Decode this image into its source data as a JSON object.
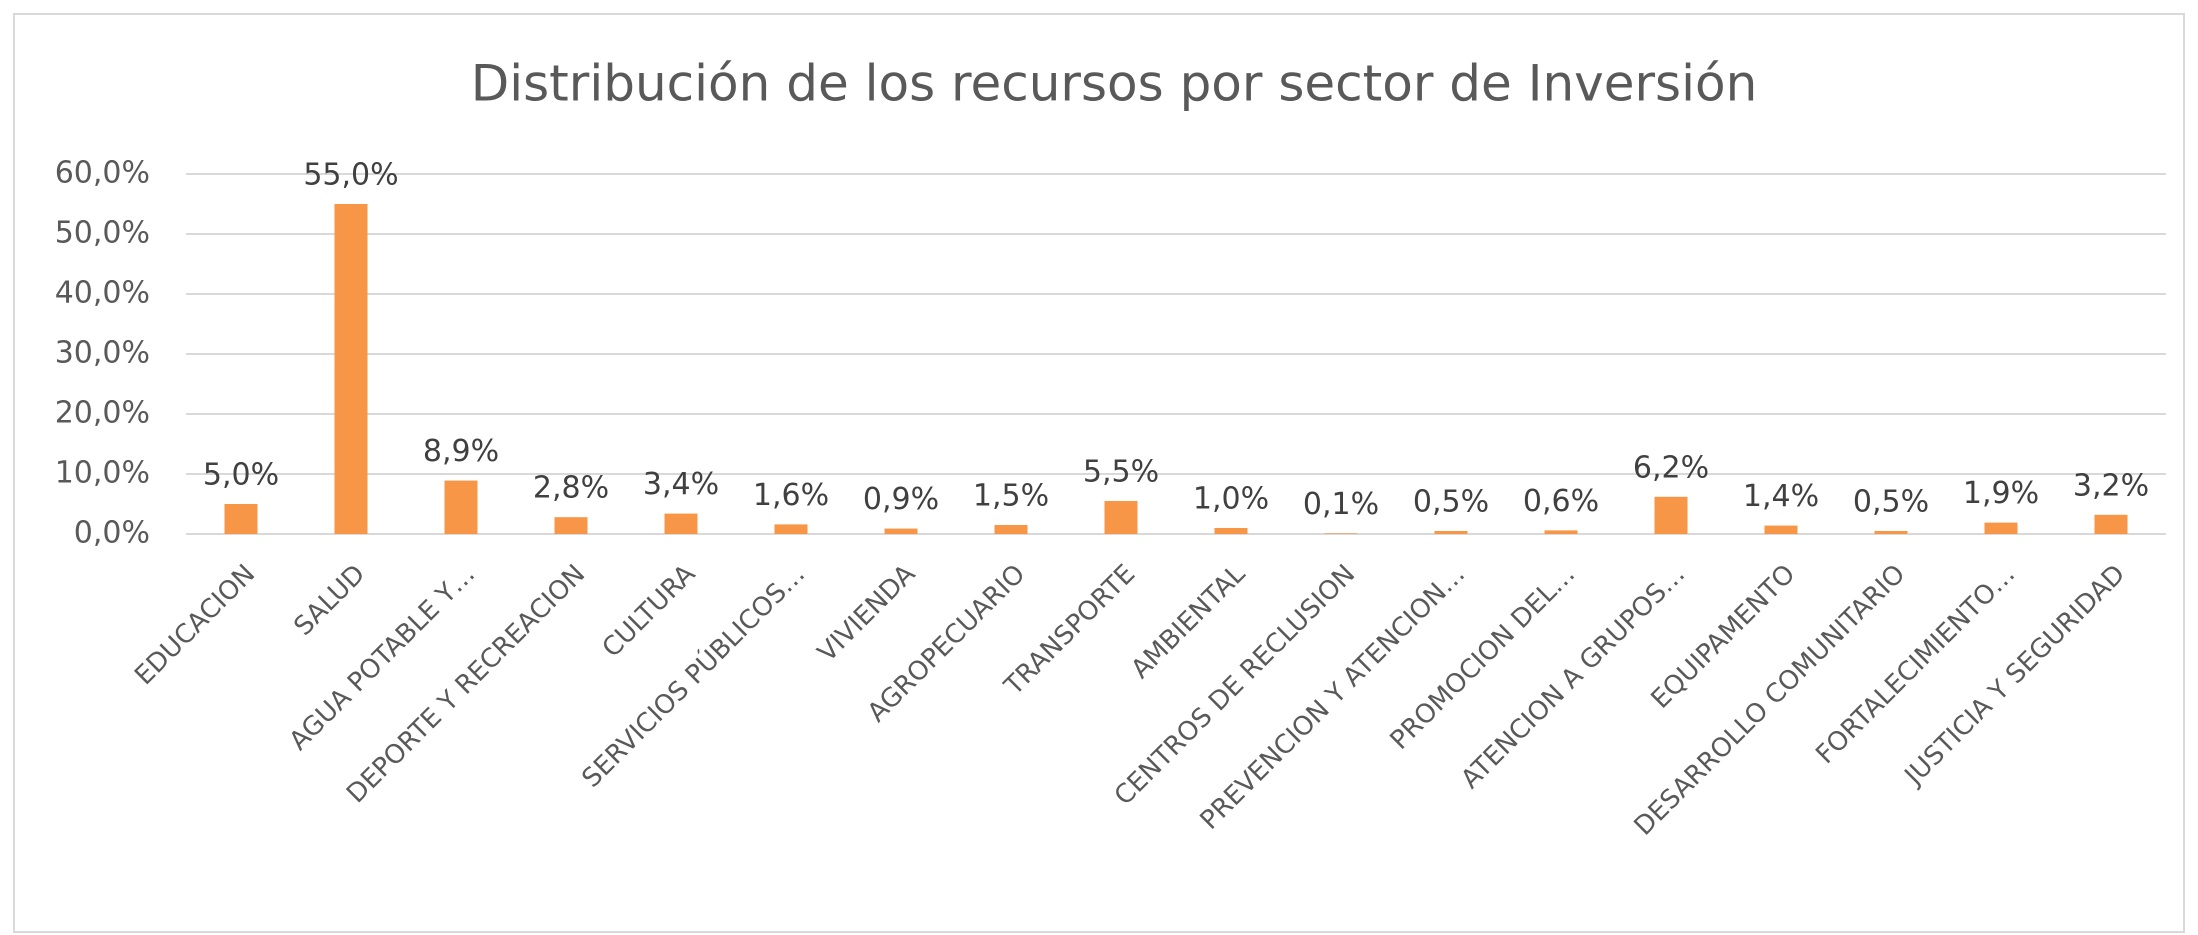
{
  "chart_data": {
    "type": "bar",
    "title": "Distribución de los recursos por sector de Inversión",
    "categories": [
      "EDUCACION",
      "SALUD",
      "AGUA POTABLE Y…",
      "DEPORTE Y RECREACION",
      "CULTURA",
      "SERVICIOS PÚBLICOS…",
      "VIVIENDA",
      "AGROPECUARIO",
      "TRANSPORTE",
      "AMBIENTAL",
      "CENTROS DE RECLUSION",
      "PREVENCION Y ATENCION…",
      "PROMOCION DEL…",
      "ATENCION A GRUPOS…",
      "EQUIPAMENTO",
      "DESARROLLO COMUNITARIO",
      "FORTALECIMIENTO…",
      "JUSTICIA Y SEGURIDAD"
    ],
    "values": [
      5.0,
      55.0,
      8.9,
      2.8,
      3.4,
      1.6,
      0.9,
      1.5,
      5.5,
      1.0,
      0.1,
      0.5,
      0.6,
      6.2,
      1.4,
      0.5,
      1.9,
      3.2
    ],
    "value_labels": [
      "5,0%",
      "55,0%",
      "8,9%",
      "2,8%",
      "3,4%",
      "1,6%",
      "0,9%",
      "1,5%",
      "5,5%",
      "1,0%",
      "0,1%",
      "0,5%",
      "0,6%",
      "6,2%",
      "1,4%",
      "0,5%",
      "1,9%",
      "3,2%"
    ],
    "color": "#f79646",
    "ylim": [
      0,
      60
    ],
    "yticks": [
      {
        "value": 0,
        "label": "0,0%"
      },
      {
        "value": 10,
        "label": "10,0%"
      },
      {
        "value": 20,
        "label": "20,0%"
      },
      {
        "value": 30,
        "label": "30,0%"
      },
      {
        "value": 40,
        "label": "40,0%"
      },
      {
        "value": 50,
        "label": "50,0%"
      },
      {
        "value": 60,
        "label": "60,0%"
      }
    ],
    "grid": true
  }
}
